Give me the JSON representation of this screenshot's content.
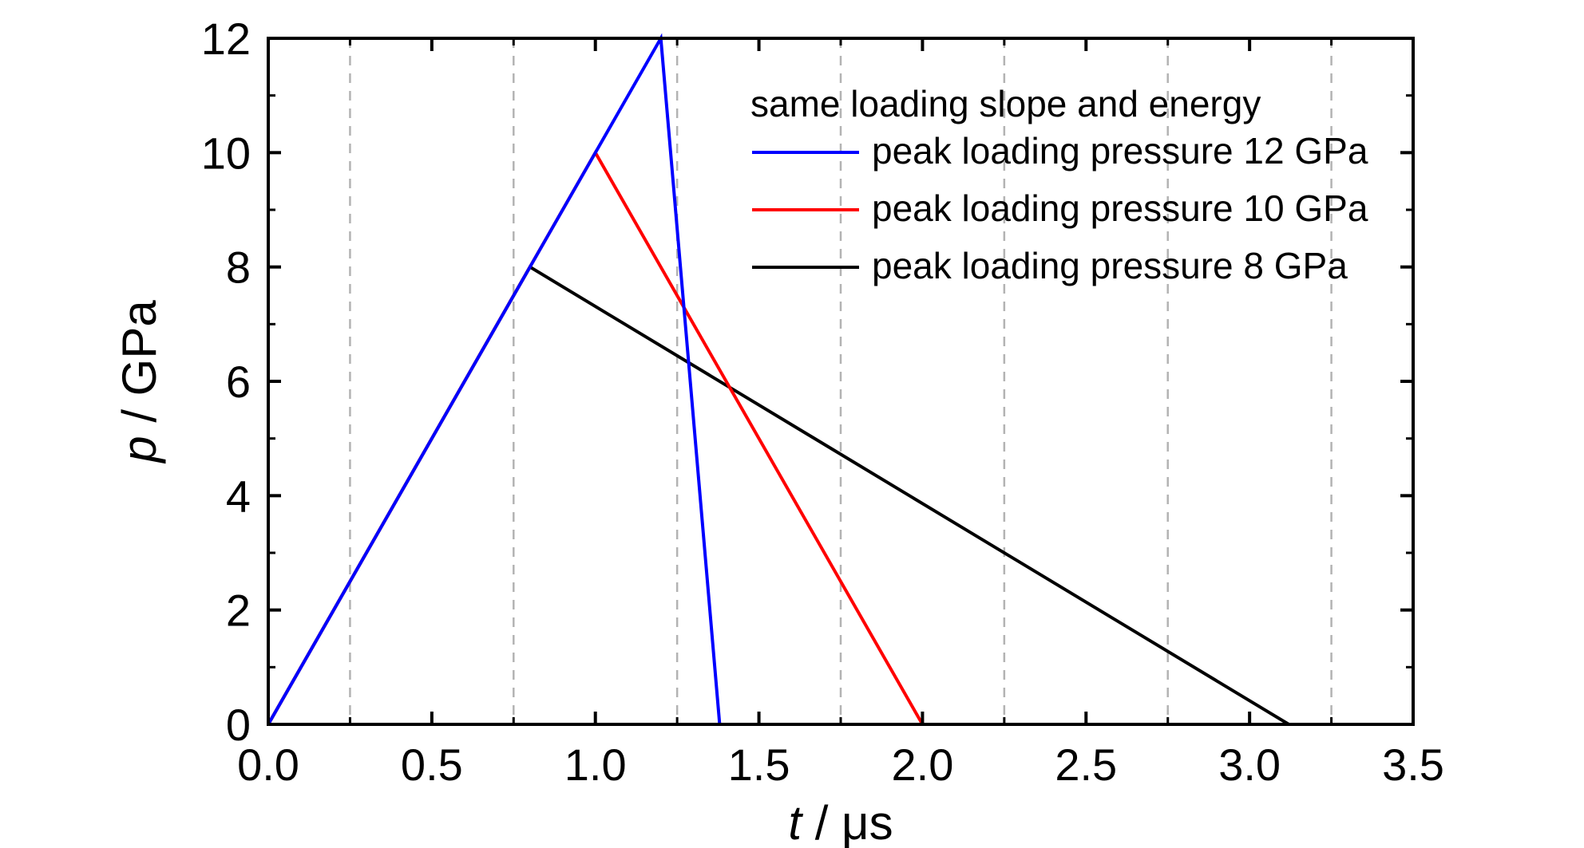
{
  "chart_data": {
    "type": "line",
    "xlabel_var": "t",
    "xlabel_unit": " / μs",
    "ylabel_var": "p",
    "ylabel_unit": " / GPa",
    "xlim": [
      0,
      3.5
    ],
    "ylim": [
      0,
      12
    ],
    "x_ticks": [
      "0.0",
      "0.5",
      "1.0",
      "1.5",
      "2.0",
      "2.5",
      "3.0",
      "3.5"
    ],
    "y_ticks": [
      "0",
      "2",
      "4",
      "6",
      "8",
      "10",
      "12"
    ],
    "x_tick_values": [
      0,
      0.5,
      1.0,
      1.5,
      2.0,
      2.5,
      3.0,
      3.5
    ],
    "y_tick_values": [
      0,
      2,
      4,
      6,
      8,
      10,
      12
    ],
    "vertical_gridlines_x": [
      0.25,
      0.75,
      1.25,
      1.75,
      2.25,
      2.75,
      3.25
    ],
    "legend_title": "same loading slope and energy",
    "legend_position": "top-right",
    "series": [
      {
        "name": "peak loading pressure 12 GPa",
        "color": "#0000ff",
        "x": [
          0,
          1.2,
          1.38
        ],
        "y": [
          0,
          12,
          0
        ]
      },
      {
        "name": "peak loading pressure 10 GPa",
        "color": "#ff0000",
        "x": [
          0,
          1.0,
          2.0
        ],
        "y": [
          0,
          10,
          0
        ]
      },
      {
        "name": "peak loading pressure 8 GPa",
        "color": "#000000",
        "x": [
          0,
          0.8,
          3.12
        ],
        "y": [
          0,
          8,
          0
        ]
      }
    ]
  }
}
